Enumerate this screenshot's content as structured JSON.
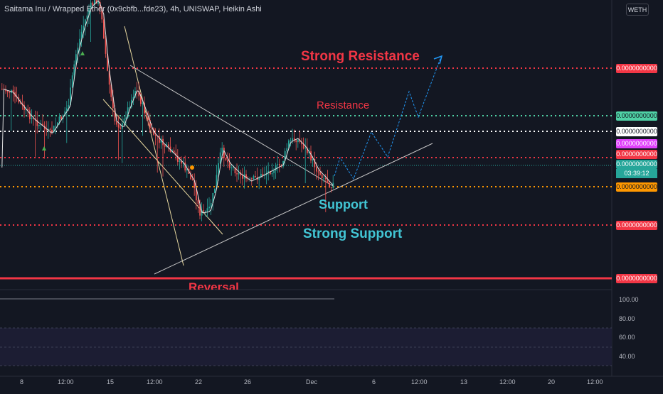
{
  "title": "Saitama Inu / Wrapped Ether (0x9cbfb...fde23), 4h, UNISWAP, Heikin Ashi",
  "currency_button": "WETH",
  "price_tags": {
    "strong_resistance": "0.0000000000",
    "resistance": "0.0000000000",
    "level_white": "0.0000000000",
    "pink": "0.0000000000",
    "red": "0.0000000000",
    "current": "0.0000000000",
    "countdown": "03:39:12",
    "support": "0.0000000000",
    "strong_support": "0.0000000000",
    "reversal": "0.0000000000"
  },
  "annotations": {
    "strong_resistance": "Strong Resistance",
    "resistance": "Resistance",
    "support": "Support",
    "strong_support": "Strong Support",
    "reversal": "Reversal"
  },
  "indicator_axis": [
    "100.00",
    "80.00",
    "60.00",
    "40.00"
  ],
  "time_axis": [
    "8",
    "12:00",
    "15",
    "12:00",
    "22",
    "26",
    "Dec",
    "6",
    "12:00",
    "13",
    "12:00",
    "20",
    "12:00"
  ],
  "colors": {
    "background": "#131722",
    "strong_resistance": "#f23645",
    "resistance": "#4fd1a5",
    "support": "#ff9800",
    "reversal": "#f23645",
    "price_line": "#26a69a",
    "projection": "#2196f3",
    "annotation_red": "#f23645",
    "annotation_teal": "#42c5d4"
  }
}
